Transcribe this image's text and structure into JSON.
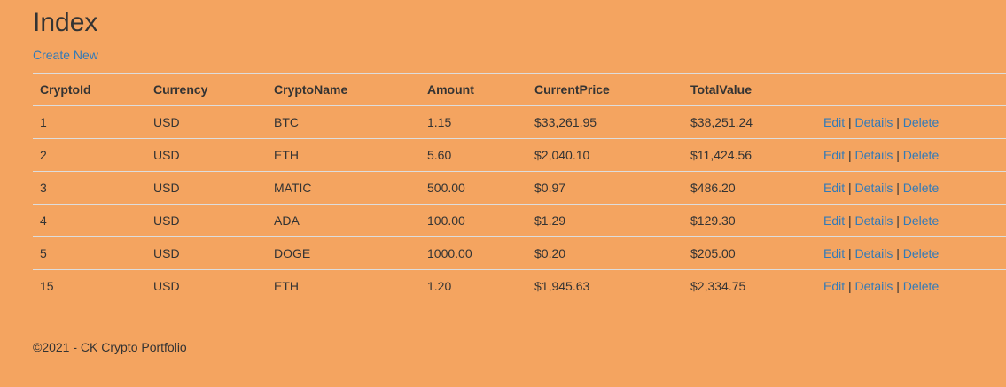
{
  "page": {
    "title": "Index",
    "create_label": "Create New"
  },
  "table": {
    "headers": [
      "CryptoId",
      "Currency",
      "CryptoName",
      "Amount",
      "CurrentPrice",
      "TotalValue"
    ],
    "rows": [
      {
        "id": "1",
        "currency": "USD",
        "name": "BTC",
        "amount": "1.15",
        "price": "$33,261.95",
        "total": "$38,251.24"
      },
      {
        "id": "2",
        "currency": "USD",
        "name": "ETH",
        "amount": "5.60",
        "price": "$2,040.10",
        "total": "$11,424.56"
      },
      {
        "id": "3",
        "currency": "USD",
        "name": "MATIC",
        "amount": "500.00",
        "price": "$0.97",
        "total": "$486.20"
      },
      {
        "id": "4",
        "currency": "USD",
        "name": "ADA",
        "amount": "100.00",
        "price": "$1.29",
        "total": "$129.30"
      },
      {
        "id": "5",
        "currency": "USD",
        "name": "DOGE",
        "amount": "1000.00",
        "price": "$0.20",
        "total": "$205.00"
      },
      {
        "id": "15",
        "currency": "USD",
        "name": "ETH",
        "amount": "1.20",
        "price": "$1,945.63",
        "total": "$2,334.75"
      }
    ],
    "actions": {
      "edit": "Edit",
      "details": "Details",
      "delete": "Delete",
      "separator": "|"
    }
  },
  "footer": {
    "text": "©2021 - CK Crypto Portfolio"
  },
  "colors": {
    "background": "#f4a460",
    "link": "#337ab7",
    "text": "#333333"
  }
}
